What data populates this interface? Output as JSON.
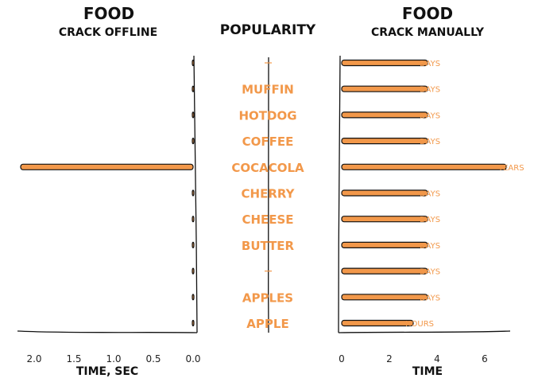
{
  "chart_data": [
    {
      "type": "bar",
      "title": "FOOD",
      "subtitle": "CRACK OFFLINE",
      "xlabel": "TIME, SEC",
      "ylabel": "",
      "orientation": "horizontal",
      "x_reversed": true,
      "xlim": [
        2.2,
        0.0
      ],
      "xticks": [
        "2.0",
        "1.5",
        "1.0",
        "0.5",
        "0.0"
      ],
      "xtick_values": [
        2.0,
        1.5,
        1.0,
        0.5,
        0.0
      ],
      "values": [
        0.01,
        0.01,
        0.01,
        0.01,
        2.17,
        0.01,
        0.01,
        0.01,
        0.01,
        0.01,
        0.01
      ],
      "color": "#f2984a"
    },
    {
      "type": "table",
      "title": "POPULARITY",
      "categories": [
        "",
        "MUFFIN",
        "HOTDOG",
        "COFFEE",
        "COCACOLA",
        "CHERRY",
        "CHEESE",
        "BUTTER",
        "",
        "APPLES",
        "APPLE"
      ],
      "color": "#f2984a"
    },
    {
      "type": "bar",
      "title": "FOOD",
      "subtitle": "CRACK MANUALLY",
      "xlabel": "TIME",
      "ylabel": "",
      "orientation": "horizontal",
      "xlim": [
        0,
        7
      ],
      "xticks": [
        "0",
        "2",
        "4",
        "6"
      ],
      "xtick_values": [
        0,
        2,
        4,
        6
      ],
      "values": [
        3.6,
        3.6,
        3.6,
        3.6,
        6.9,
        3.6,
        3.6,
        3.6,
        3.6,
        3.6,
        3.0
      ],
      "data_labels": [
        "DAYS",
        "DAYS",
        "DAYS",
        "DAYS",
        "YEARS",
        "DAYS",
        "DAYS",
        "DAYS",
        "DAYS",
        "DAYS",
        "HOURS"
      ],
      "color": "#f2984a"
    }
  ]
}
